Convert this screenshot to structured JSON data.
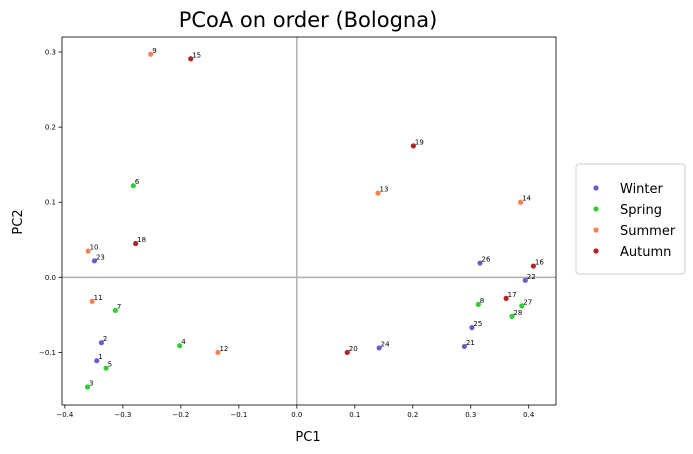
{
  "chart_data": {
    "type": "scatter",
    "title": "PCoA on order (Bologna)",
    "xlabel": "PC1",
    "ylabel": "PC2",
    "xlim": [
      -0.405,
      0.447
    ],
    "ylim": [
      -0.17,
      0.32
    ],
    "xticks": [
      -0.4,
      -0.3,
      -0.2,
      -0.1,
      0.0,
      0.1,
      0.2,
      0.3,
      0.4
    ],
    "xtick_labels": [
      "−0.4",
      "−0.3",
      "−0.2",
      "−0.1",
      "0.0",
      "0.1",
      "0.2",
      "0.3",
      "0.4"
    ],
    "yticks": [
      -0.1,
      0.0,
      0.1,
      0.2,
      0.3
    ],
    "ytick_labels": [
      "−0.1",
      "0.0",
      "0.1",
      "0.2",
      "0.3"
    ],
    "reference_lines": {
      "x": 0,
      "y": 0
    },
    "grid": false,
    "legend_position": "outside-right",
    "series": [
      {
        "name": "Winter",
        "color": "#6a5acd",
        "points": [
          {
            "label": "1",
            "x": -0.345,
            "y": -0.111
          },
          {
            "label": "2",
            "x": -0.337,
            "y": -0.087
          },
          {
            "label": "21",
            "x": 0.289,
            "y": -0.092
          },
          {
            "label": "22",
            "x": 0.394,
            "y": -0.004
          },
          {
            "label": "23",
            "x": -0.349,
            "y": 0.022
          },
          {
            "label": "24",
            "x": 0.142,
            "y": -0.094
          },
          {
            "label": "25",
            "x": 0.302,
            "y": -0.067
          },
          {
            "label": "26",
            "x": 0.316,
            "y": 0.019
          }
        ]
      },
      {
        "name": "Spring",
        "color": "#32cd32",
        "points": [
          {
            "label": "3",
            "x": -0.361,
            "y": -0.146
          },
          {
            "label": "4",
            "x": -0.202,
            "y": -0.091
          },
          {
            "label": "5",
            "x": -0.329,
            "y": -0.121
          },
          {
            "label": "6",
            "x": -0.282,
            "y": 0.122
          },
          {
            "label": "7",
            "x": -0.313,
            "y": -0.044
          },
          {
            "label": "8",
            "x": 0.313,
            "y": -0.036
          },
          {
            "label": "27",
            "x": 0.388,
            "y": -0.038
          },
          {
            "label": "28",
            "x": 0.371,
            "y": -0.052
          }
        ]
      },
      {
        "name": "Summer",
        "color": "#ff7f50",
        "points": [
          {
            "label": "9",
            "x": -0.252,
            "y": 0.297
          },
          {
            "label": "10",
            "x": -0.36,
            "y": 0.035
          },
          {
            "label": "11",
            "x": -0.353,
            "y": -0.032
          },
          {
            "label": "12",
            "x": -0.136,
            "y": -0.1
          },
          {
            "label": "13",
            "x": 0.14,
            "y": 0.112
          },
          {
            "label": "14",
            "x": 0.386,
            "y": 0.1
          }
        ]
      },
      {
        "name": "Autumn",
        "color": "#b22222",
        "points": [
          {
            "label": "15",
            "x": -0.183,
            "y": 0.291
          },
          {
            "label": "16",
            "x": 0.408,
            "y": 0.015
          },
          {
            "label": "17",
            "x": 0.361,
            "y": -0.028
          },
          {
            "label": "18",
            "x": -0.278,
            "y": 0.045
          },
          {
            "label": "19",
            "x": 0.201,
            "y": 0.175
          },
          {
            "label": "20",
            "x": 0.087,
            "y": -0.1
          }
        ]
      }
    ]
  }
}
